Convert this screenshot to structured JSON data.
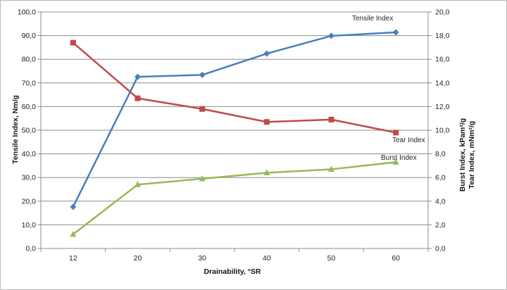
{
  "chart_data": {
    "type": "line",
    "categories": [
      "12",
      "20",
      "30",
      "40",
      "50",
      "60"
    ],
    "xlabel": "Drainability, °SR",
    "ylabel_left": "Tensile Index, Nm/g",
    "ylabel_right_line1": "Burst Index, kPam²/g",
    "ylabel_right_line2": "Tear Index, mNm²/g",
    "ylim_left": [
      0,
      100
    ],
    "ylim_right": [
      0,
      20
    ],
    "left_ticks": [
      "0,0",
      "10,0",
      "20,0",
      "30,0",
      "40,0",
      "50,0",
      "60,0",
      "70,0",
      "80,0",
      "90,0",
      "100,0"
    ],
    "right_ticks": [
      "0,0",
      "2,0",
      "4,0",
      "6,0",
      "8,0",
      "10,0",
      "12,0",
      "14,0",
      "16,0",
      "18,0",
      "20,0"
    ],
    "grid": true,
    "series": [
      {
        "name": "Tensile Index",
        "axis": "left",
        "marker": "diamond",
        "color": "#4a7ebb",
        "values": [
          17.6,
          72.6,
          73.4,
          82.4,
          89.9,
          91.4
        ]
      },
      {
        "name": "Tear Index",
        "axis": "right",
        "marker": "square",
        "color": "#be4b48",
        "values": [
          17.4,
          12.7,
          11.8,
          10.7,
          10.9,
          9.8
        ]
      },
      {
        "name": "Burst Index",
        "axis": "right",
        "marker": "triangle",
        "color": "#98b954",
        "values": [
          1.2,
          5.4,
          5.9,
          6.4,
          6.7,
          7.3
        ]
      }
    ]
  }
}
